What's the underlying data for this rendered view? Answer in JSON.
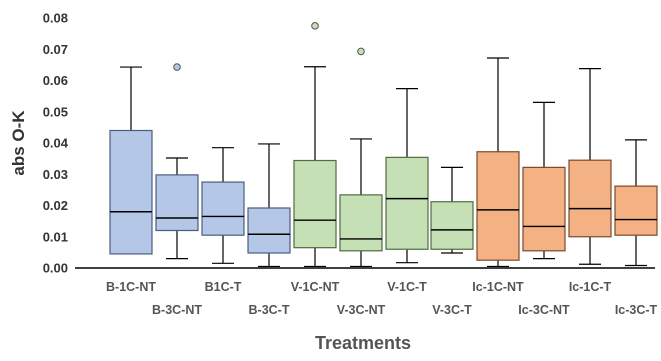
{
  "chart_data": {
    "type": "box",
    "title": "",
    "xlabel": "Treatments",
    "ylabel": "abs O-K",
    "ylim": [
      0,
      0.08
    ],
    "yticks": [
      "0.00",
      "0.01",
      "0.02",
      "0.03",
      "0.04",
      "0.05",
      "0.06",
      "0.07",
      "0.08"
    ],
    "grid": false,
    "legend": "none",
    "groups": [
      {
        "label": "B-1C-NT",
        "min": 0.0045,
        "q1": 0.0045,
        "median": 0.018,
        "q3": 0.044,
        "max": 0.0643,
        "outliers": [],
        "color": "#b4c7e7",
        "stroke": "#4a5d80"
      },
      {
        "label": "B-3C-NT",
        "min": 0.003,
        "q1": 0.012,
        "median": 0.016,
        "q3": 0.0298,
        "max": 0.0352,
        "outliers": [
          0.0643
        ],
        "color": "#b4c7e7",
        "stroke": "#4a5d80"
      },
      {
        "label": "B1C-T",
        "min": 0.0015,
        "q1": 0.0105,
        "median": 0.0165,
        "q3": 0.0275,
        "max": 0.0385,
        "outliers": [],
        "color": "#b4c7e7",
        "stroke": "#4a5d80"
      },
      {
        "label": "B-3C-T",
        "min": 0.0005,
        "q1": 0.0048,
        "median": 0.0108,
        "q3": 0.0192,
        "max": 0.0397,
        "outliers": [],
        "color": "#b4c7e7",
        "stroke": "#4a5d80"
      },
      {
        "label": "V-1C-NT",
        "min": 0.0005,
        "q1": 0.0065,
        "median": 0.0153,
        "q3": 0.0344,
        "max": 0.0644,
        "outliers": [
          0.0775
        ],
        "color": "#c5e0b4",
        "stroke": "#4f6b3f"
      },
      {
        "label": "V-3C-NT",
        "min": 0.0005,
        "q1": 0.0055,
        "median": 0.0093,
        "q3": 0.0234,
        "max": 0.0413,
        "outliers": [
          0.0693
        ],
        "color": "#c5e0b4",
        "stroke": "#4f6b3f"
      },
      {
        "label": "V-1C-T",
        "min": 0.0017,
        "q1": 0.006,
        "median": 0.0222,
        "q3": 0.0354,
        "max": 0.0574,
        "outliers": [],
        "color": "#c5e0b4",
        "stroke": "#4f6b3f"
      },
      {
        "label": "V-3C-T",
        "min": 0.0048,
        "q1": 0.006,
        "median": 0.0122,
        "q3": 0.0212,
        "max": 0.0322,
        "outliers": [],
        "color": "#c5e0b4",
        "stroke": "#4f6b3f"
      },
      {
        "label": "Ic-1C-NT",
        "min": 0.0005,
        "q1": 0.0025,
        "median": 0.0186,
        "q3": 0.0372,
        "max": 0.0672,
        "outliers": [],
        "color": "#f4b183",
        "stroke": "#7a4a2a"
      },
      {
        "label": "Ic-3C-NT",
        "min": 0.003,
        "q1": 0.0055,
        "median": 0.0133,
        "q3": 0.0322,
        "max": 0.053,
        "outliers": [],
        "color": "#f4b183",
        "stroke": "#7a4a2a"
      },
      {
        "label": "Ic-1C-T",
        "min": 0.0012,
        "q1": 0.01,
        "median": 0.019,
        "q3": 0.0345,
        "max": 0.0638,
        "outliers": [],
        "color": "#f4b183",
        "stroke": "#7a4a2a"
      },
      {
        "label": "Ic-3C-T",
        "min": 0.0008,
        "q1": 0.0105,
        "median": 0.0155,
        "q3": 0.0262,
        "max": 0.041,
        "outliers": [],
        "color": "#f4b183",
        "stroke": "#7a4a2a"
      }
    ]
  }
}
